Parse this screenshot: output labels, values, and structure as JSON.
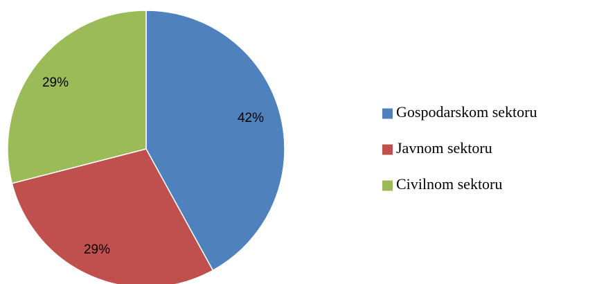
{
  "chart_data": {
    "type": "pie",
    "title": "",
    "legend_position": "right",
    "slices": [
      {
        "name": "Gospodarskom sektoru",
        "value": 42,
        "label": "42%",
        "color": "#4F81BD"
      },
      {
        "name": "Javnom sektoru",
        "value": 29,
        "label": "29%",
        "color": "#C0504D"
      },
      {
        "name": "Civilnom sektoru",
        "value": 29,
        "label": "29%",
        "color": "#9BBB59"
      }
    ]
  }
}
